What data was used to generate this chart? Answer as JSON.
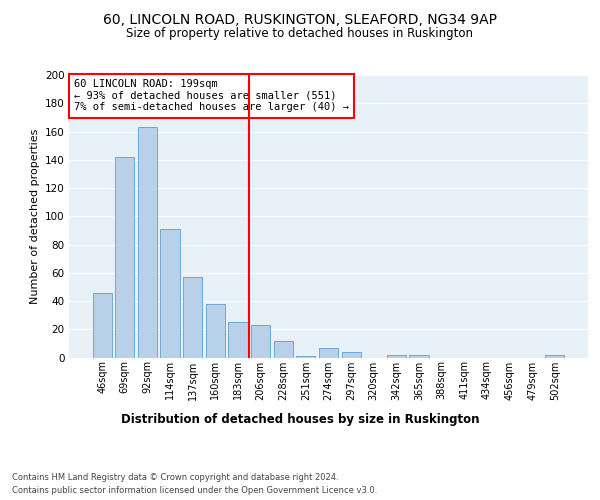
{
  "title1": "60, LINCOLN ROAD, RUSKINGTON, SLEAFORD, NG34 9AP",
  "title2": "Size of property relative to detached houses in Ruskington",
  "xlabel": "Distribution of detached houses by size in Ruskington",
  "ylabel": "Number of detached properties",
  "bar_color": "#b8d0ea",
  "bar_edge_color": "#6aaad4",
  "background_color": "#e8f0f8",
  "grid_color": "#ffffff",
  "vline_color": "red",
  "annotation_text": "60 LINCOLN ROAD: 199sqm\n← 93% of detached houses are smaller (551)\n7% of semi-detached houses are larger (40) →",
  "annotation_box_color": "white",
  "annotation_box_edge": "red",
  "footer1": "Contains HM Land Registry data © Crown copyright and database right 2024.",
  "footer2": "Contains public sector information licensed under the Open Government Licence v3.0.",
  "categories": [
    "46sqm",
    "69sqm",
    "92sqm",
    "114sqm",
    "137sqm",
    "160sqm",
    "183sqm",
    "206sqm",
    "228sqm",
    "251sqm",
    "274sqm",
    "297sqm",
    "320sqm",
    "342sqm",
    "365sqm",
    "388sqm",
    "411sqm",
    "434sqm",
    "456sqm",
    "479sqm",
    "502sqm"
  ],
  "values": [
    46,
    142,
    163,
    91,
    57,
    38,
    25,
    23,
    12,
    1,
    7,
    4,
    0,
    2,
    2,
    0,
    0,
    0,
    0,
    0,
    2
  ],
  "ylim": [
    0,
    200
  ],
  "yticks": [
    0,
    20,
    40,
    60,
    80,
    100,
    120,
    140,
    160,
    180,
    200
  ]
}
